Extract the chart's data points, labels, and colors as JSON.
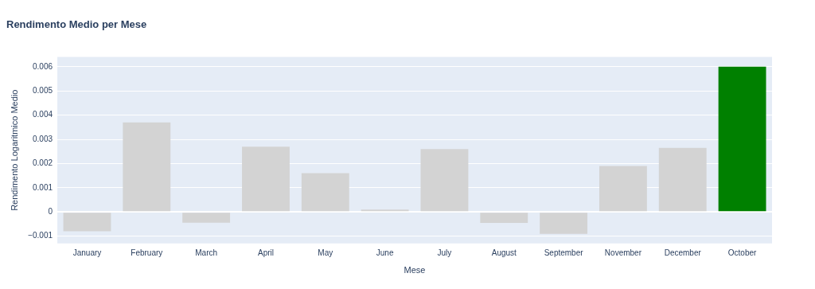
{
  "chart_data": {
    "type": "bar",
    "title": "Rendimento Medio per Mese",
    "xlabel": "Mese",
    "ylabel": "Rendimento Logaritmico Medio",
    "categories": [
      "January",
      "February",
      "March",
      "April",
      "May",
      "June",
      "July",
      "August",
      "September",
      "November",
      "December",
      "October"
    ],
    "values": [
      -0.0008,
      0.0037,
      -0.00044,
      0.0027,
      0.0016,
      0.0001,
      0.0026,
      -0.00045,
      -0.0009,
      0.0019,
      0.00265,
      0.006
    ],
    "colors": [
      "#d3d3d3",
      "#d3d3d3",
      "#d3d3d3",
      "#d3d3d3",
      "#d3d3d3",
      "#d3d3d3",
      "#d3d3d3",
      "#d3d3d3",
      "#d3d3d3",
      "#d3d3d3",
      "#d3d3d3",
      "#008000"
    ],
    "ylim": [
      -0.0013,
      0.0064
    ],
    "yticks": [
      {
        "value": -0.001,
        "label": "−0.001"
      },
      0,
      0.001,
      0.002,
      0.003,
      0.004,
      0.005,
      0.006
    ],
    "grid": "y",
    "legend": false
  }
}
